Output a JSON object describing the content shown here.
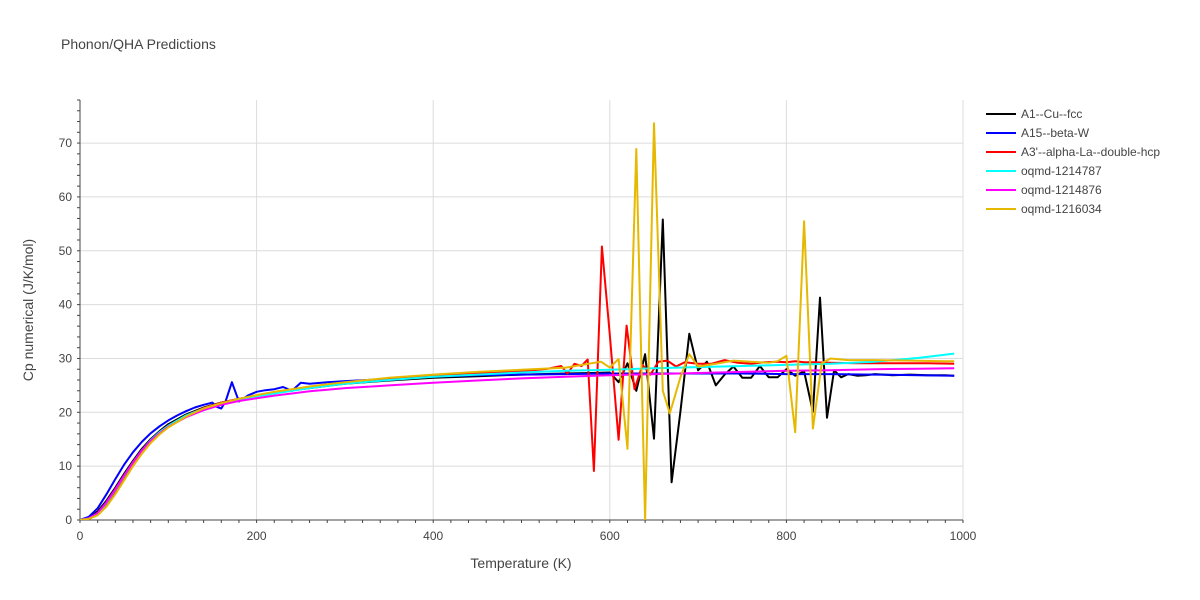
{
  "chart_data": {
    "type": "line",
    "title": "Phonon/QHA Predictions",
    "xlabel": "Temperature (K)",
    "ylabel": "Cp numerical (J/K/mol)",
    "xlim": [
      0,
      1000
    ],
    "ylim": [
      0,
      78
    ],
    "xticks": [
      0,
      200,
      400,
      600,
      800,
      1000
    ],
    "yticks": [
      0,
      10,
      20,
      30,
      40,
      50,
      60,
      70
    ],
    "grid": true,
    "legend_position": "top-right outside",
    "series": [
      {
        "name": "A1--Cu--fcc",
        "color": "#000000",
        "x": [
          0,
          10,
          20,
          30,
          40,
          50,
          60,
          70,
          80,
          90,
          100,
          120,
          140,
          160,
          180,
          200,
          220,
          240,
          260,
          280,
          300,
          350,
          400,
          450,
          500,
          550,
          580,
          600,
          610,
          620,
          630,
          640,
          650,
          660,
          670,
          680,
          690,
          700,
          710,
          720,
          730,
          740,
          750,
          760,
          770,
          780,
          790,
          800,
          810,
          820,
          830,
          838,
          846,
          854,
          862,
          870,
          880,
          890,
          900,
          920,
          940,
          960,
          980,
          990
        ],
        "y": [
          0,
          0.4,
          1.6,
          3.6,
          6.0,
          8.6,
          11.0,
          13.2,
          15.0,
          16.5,
          17.8,
          19.6,
          20.9,
          21.8,
          22.5,
          23.1,
          23.6,
          24.1,
          24.5,
          24.9,
          25.3,
          25.9,
          26.4,
          26.7,
          27.0,
          27.2,
          27.3,
          27.4,
          25.6,
          29.1,
          24.0,
          30.8,
          15.1,
          55.8,
          7.0,
          20.1,
          34.6,
          27.8,
          29.4,
          25.0,
          27.0,
          28.5,
          26.4,
          26.4,
          28.6,
          26.5,
          26.5,
          28.0,
          26.8,
          27.6,
          20.1,
          41.3,
          19.0,
          27.8,
          26.5,
          27.1,
          26.8,
          26.9,
          27.1,
          26.9,
          27.0,
          26.9,
          26.9,
          26.8
        ]
      },
      {
        "name": "A15--beta-W",
        "color": "#0000ff",
        "x": [
          0,
          10,
          20,
          30,
          40,
          50,
          60,
          70,
          80,
          90,
          100,
          110,
          120,
          130,
          140,
          150,
          155,
          160,
          165,
          172,
          180,
          190,
          200,
          210,
          220,
          230,
          240,
          250,
          260,
          280,
          300,
          350,
          400,
          450,
          500,
          550,
          600,
          650,
          700,
          750,
          800,
          850,
          900,
          950,
          990
        ],
        "y": [
          0,
          0.6,
          2.2,
          4.8,
          7.6,
          10.3,
          12.6,
          14.5,
          16.1,
          17.4,
          18.5,
          19.4,
          20.2,
          20.9,
          21.4,
          21.8,
          21.0,
          20.7,
          22.1,
          25.6,
          22.0,
          23.1,
          23.8,
          24.1,
          24.3,
          24.7,
          24.0,
          25.5,
          25.3,
          25.6,
          25.8,
          26.2,
          26.6,
          26.9,
          27.0,
          27.1,
          27.2,
          27.2,
          27.2,
          27.2,
          27.1,
          27.1,
          27.0,
          26.9,
          26.8
        ]
      },
      {
        "name": "A3'--alpha-La--double-hcp",
        "color": "#ff0000",
        "x": [
          0,
          10,
          20,
          30,
          40,
          50,
          60,
          70,
          80,
          90,
          100,
          120,
          140,
          160,
          180,
          200,
          220,
          240,
          260,
          280,
          300,
          350,
          400,
          450,
          500,
          530,
          545,
          552,
          560,
          568,
          575,
          582,
          591,
          600,
          610,
          619,
          628,
          637,
          646,
          655,
          665,
          675,
          685,
          700,
          715,
          730,
          745,
          760,
          775,
          790,
          800,
          810,
          820,
          830,
          850,
          880,
          920,
          960,
          990
        ],
        "y": [
          0,
          0.2,
          1.0,
          2.7,
          5.1,
          7.8,
          10.4,
          12.7,
          14.7,
          16.3,
          17.5,
          19.4,
          20.8,
          21.8,
          22.5,
          23.1,
          23.7,
          24.2,
          24.7,
          25.1,
          25.5,
          26.2,
          26.8,
          27.2,
          27.6,
          28.1,
          28.6,
          27.2,
          29.0,
          28.6,
          29.8,
          9.1,
          50.8,
          34.4,
          14.9,
          36.1,
          24.3,
          28.8,
          27.0,
          29.4,
          29.6,
          28.5,
          29.3,
          29.0,
          29.0,
          29.7,
          29.2,
          29.0,
          29.3,
          29.4,
          29.3,
          29.5,
          29.3,
          29.3,
          29.2,
          29.1,
          29.1,
          29.1,
          29.0
        ]
      },
      {
        "name": "oqmd-1214787",
        "color": "#00ffff",
        "x": [
          0,
          10,
          20,
          30,
          40,
          50,
          60,
          70,
          80,
          90,
          100,
          120,
          140,
          160,
          180,
          200,
          220,
          240,
          260,
          280,
          300,
          350,
          400,
          450,
          500,
          550,
          600,
          650,
          700,
          750,
          800,
          850,
          900,
          950,
          990
        ],
        "y": [
          0,
          0.3,
          1.2,
          3.2,
          5.6,
          8.2,
          10.7,
          12.9,
          14.8,
          16.3,
          17.5,
          19.4,
          20.7,
          21.7,
          22.4,
          23.0,
          23.5,
          24.0,
          24.5,
          24.9,
          25.3,
          26.0,
          26.6,
          27.0,
          27.4,
          27.7,
          27.9,
          28.2,
          28.4,
          28.6,
          28.8,
          29.0,
          29.4,
          30.1,
          30.9
        ]
      },
      {
        "name": "oqmd-1214876",
        "color": "#ff00ff",
        "x": [
          0,
          10,
          20,
          30,
          40,
          50,
          60,
          70,
          80,
          90,
          100,
          120,
          140,
          160,
          180,
          200,
          220,
          240,
          260,
          280,
          300,
          350,
          400,
          450,
          500,
          550,
          600,
          650,
          700,
          750,
          800,
          850,
          900,
          950,
          990
        ],
        "y": [
          0,
          0.3,
          1.3,
          3.3,
          5.7,
          8.3,
          10.7,
          12.9,
          14.7,
          16.1,
          17.3,
          19.1,
          20.4,
          21.4,
          22.1,
          22.6,
          23.1,
          23.5,
          23.9,
          24.2,
          24.5,
          25.0,
          25.5,
          25.9,
          26.3,
          26.6,
          26.9,
          27.1,
          27.3,
          27.5,
          27.7,
          27.8,
          28.0,
          28.1,
          28.2
        ]
      },
      {
        "name": "oqmd-1216034",
        "color": "#e6b800",
        "x": [
          0,
          10,
          20,
          30,
          40,
          50,
          60,
          70,
          80,
          90,
          100,
          120,
          140,
          160,
          180,
          200,
          220,
          240,
          260,
          280,
          300,
          350,
          400,
          450,
          500,
          550,
          590,
          600,
          610,
          620,
          630,
          640,
          650,
          660,
          668,
          680,
          690,
          700,
          720,
          740,
          760,
          780,
          790,
          800,
          810,
          820,
          830,
          840,
          850,
          870,
          900,
          940,
          980,
          990
        ],
        "y": [
          0,
          0.2,
          0.9,
          2.5,
          4.8,
          7.4,
          10.0,
          12.3,
          14.3,
          15.9,
          17.2,
          19.2,
          20.7,
          21.7,
          22.5,
          23.2,
          23.8,
          24.3,
          24.8,
          25.2,
          25.6,
          26.4,
          27.0,
          27.5,
          27.9,
          28.3,
          29.4,
          28.3,
          29.9,
          13.2,
          68.9,
          0.0,
          73.7,
          24.0,
          19.8,
          26.5,
          30.8,
          28.5,
          29.0,
          29.6,
          29.4,
          29.2,
          29.5,
          30.5,
          16.3,
          55.5,
          17.0,
          29.1,
          30.0,
          29.7,
          29.7,
          29.6,
          29.5,
          29.5
        ]
      }
    ]
  }
}
